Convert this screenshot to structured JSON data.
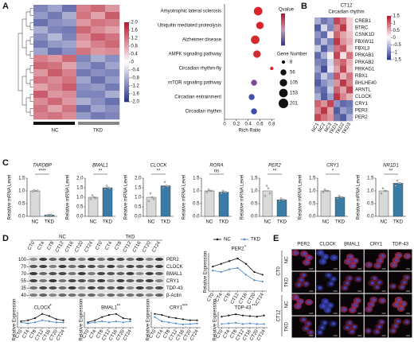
{
  "panel_labels": [
    "A",
    "B",
    "C",
    "D",
    "E"
  ],
  "chart_data": [
    {
      "type": "heatmap",
      "column_groups": [
        "NC",
        "TKD"
      ],
      "clim": [
        -2,
        2
      ],
      "colorbar_ticks": [
        {
          "value": 2,
          "label": "2.0"
        },
        1.6,
        1.2,
        0.8,
        0.4,
        0,
        -0.4,
        -0.8,
        -1.2,
        -1.6,
        {
          "value": -2,
          "label": "-2.0"
        }
      ],
      "values": [
        [
          -1.2,
          -0.9,
          -1.4,
          1.1,
          1.3,
          0.9
        ],
        [
          -1.0,
          -1.3,
          -0.8,
          1.2,
          0.8,
          1.4
        ],
        [
          -1.4,
          -1.1,
          -1.0,
          0.9,
          1.2,
          1.1
        ],
        [
          -0.8,
          -1.2,
          -1.3,
          1.3,
          1.0,
          0.8
        ],
        [
          -1.1,
          -0.7,
          -1.2,
          1.0,
          1.4,
          1.2
        ],
        [
          -1.3,
          -1.0,
          -0.9,
          0.8,
          1.1,
          1.3
        ],
        [
          -0.9,
          -1.4,
          -1.1,
          1.2,
          0.9,
          1.0
        ],
        [
          1.1,
          0.9,
          1.3,
          -1.2,
          -0.8,
          -1.1
        ],
        [
          1.3,
          1.2,
          0.8,
          -1.0,
          -1.3,
          -0.9
        ],
        [
          0.9,
          1.4,
          1.1,
          -1.3,
          -1.1,
          -1.2
        ],
        [
          1.2,
          1.0,
          1.2,
          -0.9,
          -1.4,
          -1.0
        ],
        [
          0.8,
          1.1,
          1.4,
          -1.1,
          -1.0,
          -1.3
        ],
        [
          1.4,
          0.9,
          1.0,
          -1.2,
          -1.2,
          -0.8
        ],
        [
          1.0,
          1.3,
          0.9,
          -0.8,
          -1.1,
          -1.4
        ],
        [
          1.2,
          0.8,
          1.2,
          -1.4,
          -0.9,
          -1.1
        ],
        [
          1.1,
          1.2,
          1.0,
          -1.0,
          -1.3,
          -1.2
        ]
      ]
    },
    {
      "type": "dot",
      "categories": [
        "Amyotrophic lateral sclerosis",
        "Ubiquitin mediated proteolysis",
        "Alzheimer disease",
        "AMPK signaling pathway",
        "Circadian rhythm-fly",
        "mTOR signaling pathway",
        "Circadian entrainment",
        "Circadian rhythm"
      ],
      "values": [
        0.57,
        0.6,
        0.52,
        0.55,
        0.8,
        0.5,
        0.46,
        0.5
      ],
      "sizes": [
        153,
        105,
        153,
        105,
        8,
        56,
        56,
        56
      ],
      "colors": [
        "#d7262b",
        "#d7262b",
        "#d42a30",
        "#d02c34",
        "#d7262b",
        "#7a4a9a",
        "#4450a8",
        "#3c4fb0"
      ],
      "xlabel": "Rich Ratio",
      "xlim": [
        0,
        0.85
      ],
      "xticks": [
        0,
        0.2,
        0.4,
        0.6,
        0.8
      ],
      "qvalue_title": "Qvalue",
      "size_title": "Gene Number",
      "size_legend": [
        8,
        56,
        105,
        153,
        201
      ]
    },
    {
      "type": "heatmap",
      "title": "CT12",
      "subtitle": "Circadian rhythm",
      "clim": [
        -1.5,
        1.5
      ],
      "colorbar_ticks": [
        1.5,
        1,
        0.5,
        0,
        -0.5,
        -1,
        -1.5
      ],
      "rows": [
        "CREB1",
        "BTRC",
        "CSNK1D",
        "FBXW11",
        "FBXL3",
        "PRKAB1",
        "PRKAB2",
        "PRKAG1",
        "RBX1",
        "BHLHE40",
        "ARNTL",
        "CLOCK",
        "CRY1",
        "PER3",
        "PER2"
      ],
      "columns": [
        "NC1",
        "NC2",
        "NC3",
        "TKD1",
        "TKD2",
        "TKD3"
      ],
      "values": [
        [
          -0.6,
          -1.0,
          -0.8,
          1.2,
          0.9,
          0.3
        ],
        [
          -1.2,
          -0.3,
          -0.9,
          0.8,
          1.3,
          0.3
        ],
        [
          -0.8,
          -1.1,
          0.2,
          1.0,
          0.6,
          0.4
        ],
        [
          -1.0,
          -0.5,
          -0.9,
          1.3,
          0.7,
          0.5
        ],
        [
          -0.4,
          -1.2,
          -0.7,
          0.9,
          1.1,
          0.3
        ],
        [
          -1.1,
          -0.6,
          0.1,
          1.2,
          0.2,
          0.9
        ],
        [
          -0.9,
          -1.0,
          -0.3,
          0.8,
          1.0,
          0.5
        ],
        [
          -0.7,
          -1.3,
          -0.2,
          0.6,
          1.2,
          0.4
        ],
        [
          -1.0,
          -0.4,
          -0.8,
          1.1,
          0.5,
          0.9
        ],
        [
          -1.2,
          -0.8,
          -0.6,
          0.7,
          1.3,
          0.8
        ],
        [
          -0.9,
          -1.1,
          -0.4,
          1.0,
          0.6,
          1.2
        ],
        [
          -0.6,
          -1.2,
          -0.7,
          1.3,
          0.8,
          0.5
        ],
        [
          1.0,
          0.7,
          1.2,
          -0.8,
          -1.1,
          -1.0
        ],
        [
          0.8,
          1.3,
          0.6,
          -1.2,
          -0.7,
          -0.9
        ],
        [
          1.2,
          0.9,
          0.7,
          -1.0,
          -1.2,
          -0.6
        ]
      ]
    },
    {
      "type": "bar",
      "title": "TARDBP",
      "significance": "****",
      "ylabel": "Relative mRNA Level",
      "categories": [
        "NC",
        "TKD"
      ],
      "values": [
        1.0,
        0.05
      ],
      "points": [
        [
          0.98,
          1.02,
          1.0,
          1.01
        ],
        [
          0.04,
          0.06,
          0.05,
          0.05
        ]
      ],
      "colors": [
        "#d9d9d9",
        "#3a7ca5"
      ],
      "ylim": [
        0,
        1.5
      ],
      "yticks": [
        {
          "value": 0,
          "label": "0.0"
        },
        0.5,
        {
          "value": 1,
          "label": "1.0"
        },
        1.5
      ]
    },
    {
      "type": "bar",
      "title": "BMAL1",
      "significance": "**",
      "ylabel": "Relative mRNA Level",
      "categories": [
        "NC",
        "TKD"
      ],
      "values": [
        1.0,
        1.5
      ],
      "points": [
        [
          0.9,
          1.1,
          1.0,
          0.95
        ],
        [
          1.4,
          1.6,
          1.5,
          1.45
        ]
      ],
      "colors": [
        "#d9d9d9",
        "#3a7ca5"
      ],
      "ylim": [
        0,
        2
      ],
      "yticks": [
        {
          "value": 0,
          "label": "0.0"
        },
        0.5,
        {
          "value": 1,
          "label": "1.0"
        },
        1.5,
        {
          "value": 2,
          "label": "2.0"
        }
      ]
    },
    {
      "type": "bar",
      "title": "CLOCK",
      "significance": "**",
      "ylabel": "Relative mRNA Level",
      "categories": [
        "NC",
        "TKD"
      ],
      "values": [
        1.0,
        1.6
      ],
      "points": [
        [
          0.8,
          1.2,
          1.0,
          0.9
        ],
        [
          1.5,
          1.8,
          1.6,
          1.55
        ]
      ],
      "colors": [
        "#d9d9d9",
        "#3a7ca5"
      ],
      "ylim": [
        0,
        2
      ],
      "yticks": [
        {
          "value": 0,
          "label": "0.0"
        },
        0.5,
        {
          "value": 1,
          "label": "1.0"
        },
        1.5,
        {
          "value": 2,
          "label": "2.0"
        }
      ]
    },
    {
      "type": "bar",
      "title": "RORA",
      "significance": "ns",
      "ylabel": "Relative mRNA Level",
      "categories": [
        "NC",
        "TKD"
      ],
      "values": [
        1.0,
        0.95
      ],
      "points": [
        [
          0.95,
          1.05,
          1.0,
          1.0
        ],
        [
          0.9,
          1.0,
          0.95,
          0.95
        ]
      ],
      "colors": [
        "#d9d9d9",
        "#3a7ca5"
      ],
      "ylim": [
        0,
        1.5
      ],
      "yticks": [
        {
          "value": 0,
          "label": "0.0"
        },
        0.5,
        {
          "value": 1,
          "label": "1.0"
        },
        1.5
      ]
    },
    {
      "type": "bar",
      "title": "PER2",
      "significance": "**",
      "ylabel": "Relative mRNA Level",
      "categories": [
        "NC",
        "TKD"
      ],
      "values": [
        1.0,
        0.65
      ],
      "points": [
        [
          0.8,
          1.2,
          1.1,
          0.9
        ],
        [
          0.6,
          0.7,
          0.65,
          0.65
        ]
      ],
      "colors": [
        "#d9d9d9",
        "#3a7ca5"
      ],
      "ylim": [
        0,
        1.5
      ],
      "yticks": [
        {
          "value": 0,
          "label": "0.0"
        },
        0.5,
        {
          "value": 1,
          "label": "1.0"
        },
        1.5
      ]
    },
    {
      "type": "bar",
      "title": "CRY1",
      "significance": "*",
      "ylabel": "Relative mRNA Level",
      "categories": [
        "NC",
        "TKD"
      ],
      "values": [
        1.0,
        0.75
      ],
      "points": [
        [
          0.95,
          1.05,
          1.0,
          1.0
        ],
        [
          0.7,
          0.8,
          0.75,
          0.75
        ]
      ],
      "colors": [
        "#d9d9d9",
        "#3a7ca5"
      ],
      "ylim": [
        0,
        1.5
      ],
      "yticks": [
        {
          "value": 0,
          "label": "0.0"
        },
        0.5,
        {
          "value": 1,
          "label": "1.0"
        },
        1.5
      ]
    },
    {
      "type": "bar",
      "title": "NR1D1",
      "significance": "**",
      "ylabel": "Relative mRNA Level",
      "categories": [
        "NC",
        "TKD"
      ],
      "values": [
        1.0,
        1.3
      ],
      "points": [
        [
          0.9,
          1.1,
          1.0,
          1.0
        ],
        [
          1.2,
          1.4,
          1.3,
          1.3
        ]
      ],
      "colors": [
        "#d9d9d9",
        "#3a7ca5"
      ],
      "ylim": [
        0,
        1.5
      ],
      "yticks": [
        {
          "value": 0,
          "label": "0.0"
        },
        0.5,
        {
          "value": 1,
          "label": "1.0"
        },
        1.5
      ]
    },
    {
      "type": "line",
      "title": "PER2",
      "title_superscript": "*",
      "ylabel": "Relative Expression",
      "categories": [
        "CT0",
        "CT4",
        "CT8",
        "CT12",
        "CT16",
        "CT20",
        "CT24"
      ],
      "ylim": [
        0,
        1.4
      ],
      "series": [
        {
          "name": "NC",
          "color": "#111111",
          "values": [
            0.9,
            1.0,
            1.1,
            1.2,
            1.0,
            0.7,
            0.6
          ]
        },
        {
          "name": "TKD",
          "color": "#4a86c5",
          "values": [
            0.75,
            0.7,
            0.8,
            0.85,
            0.6,
            0.4,
            0.35
          ]
        }
      ]
    },
    {
      "type": "line",
      "title": "CLOCK",
      "title_superscript": "*",
      "ylabel": "Relative Expression",
      "categories": [
        "CT0",
        "CT4",
        "CT8",
        "CT12",
        "CT16",
        "CT20",
        "CT24"
      ],
      "ylim": [
        0,
        1.5
      ],
      "series": [
        {
          "color": "#111111",
          "values": [
            0.6,
            0.7,
            0.9,
            1.3,
            1.1,
            0.8,
            0.7
          ]
        },
        {
          "color": "#4a86c5",
          "values": [
            0.5,
            0.4,
            0.5,
            0.7,
            0.6,
            0.5,
            0.5
          ]
        }
      ]
    },
    {
      "type": "line",
      "title": "BMAL1",
      "title_superscript": "**",
      "ylabel": "Relative Expression",
      "categories": [
        "CT0",
        "CT4",
        "CT8",
        "CT12",
        "CT16",
        "CT20",
        "CT24"
      ],
      "ylim": [
        0,
        1.5
      ],
      "series": [
        {
          "color": "#111111",
          "values": [
            0.5,
            0.7,
            1.0,
            1.2,
            1.3,
            0.9,
            0.8
          ]
        },
        {
          "color": "#4a86c5",
          "values": [
            0.4,
            0.5,
            0.6,
            0.5,
            0.6,
            0.5,
            0.6
          ]
        }
      ]
    },
    {
      "type": "line",
      "title": "CRY1",
      "title_superscript": "***",
      "ylabel": "Relative Expression",
      "categories": [
        "CT0",
        "CT4",
        "CT8",
        "CT12",
        "CT16",
        "CT20",
        "CT24"
      ],
      "ylim": [
        0,
        1.5
      ],
      "series": [
        {
          "color": "#111111",
          "values": [
            1.3,
            1.2,
            1.0,
            0.9,
            0.8,
            0.7,
            0.7
          ]
        },
        {
          "color": "#4a86c5",
          "values": [
            1.0,
            0.6,
            0.5,
            0.4,
            0.3,
            0.35,
            0.4
          ]
        }
      ]
    },
    {
      "type": "line",
      "title": "TDP-43",
      "title_superscript": "***",
      "ylabel": "Relative Expression",
      "categories": [
        "CT0",
        "CT4",
        "CT8",
        "CT12",
        "CT16",
        "CT20",
        "CT24"
      ],
      "ylim": [
        0,
        1.3
      ],
      "series": [
        {
          "color": "#111111",
          "values": [
            0.9,
            1.0,
            1.1,
            1.0,
            0.95,
            0.9,
            1.0
          ]
        },
        {
          "color": "#4a86c5",
          "values": [
            0.3,
            0.35,
            0.4,
            0.3,
            0.35,
            0.3,
            0.3
          ]
        }
      ]
    }
  ],
  "blot": {
    "group_labels": [
      "NC",
      "TKD"
    ],
    "lanes": [
      "CT0",
      "CT4",
      "CT8",
      "CT12",
      "CT16",
      "CT20",
      "CT24",
      "CT0",
      "CT4",
      "CT8",
      "CT12",
      "CT16",
      "CT20",
      "CT24"
    ],
    "proteins": [
      "PER2",
      "CLOCK",
      "BMAL1",
      "CRY1",
      "TDP-43",
      "β-Actin"
    ],
    "markers": [
      100,
      70,
      70,
      55,
      35,
      40
    ]
  },
  "microscopy": {
    "columns": [
      "PER2",
      "CLOCK",
      "BMAL1",
      "CRY1",
      "TDP-43"
    ],
    "time_points": [
      "CT0",
      "CT12"
    ],
    "rows": [
      "NC",
      "TKD",
      "NC",
      "TKD"
    ]
  }
}
